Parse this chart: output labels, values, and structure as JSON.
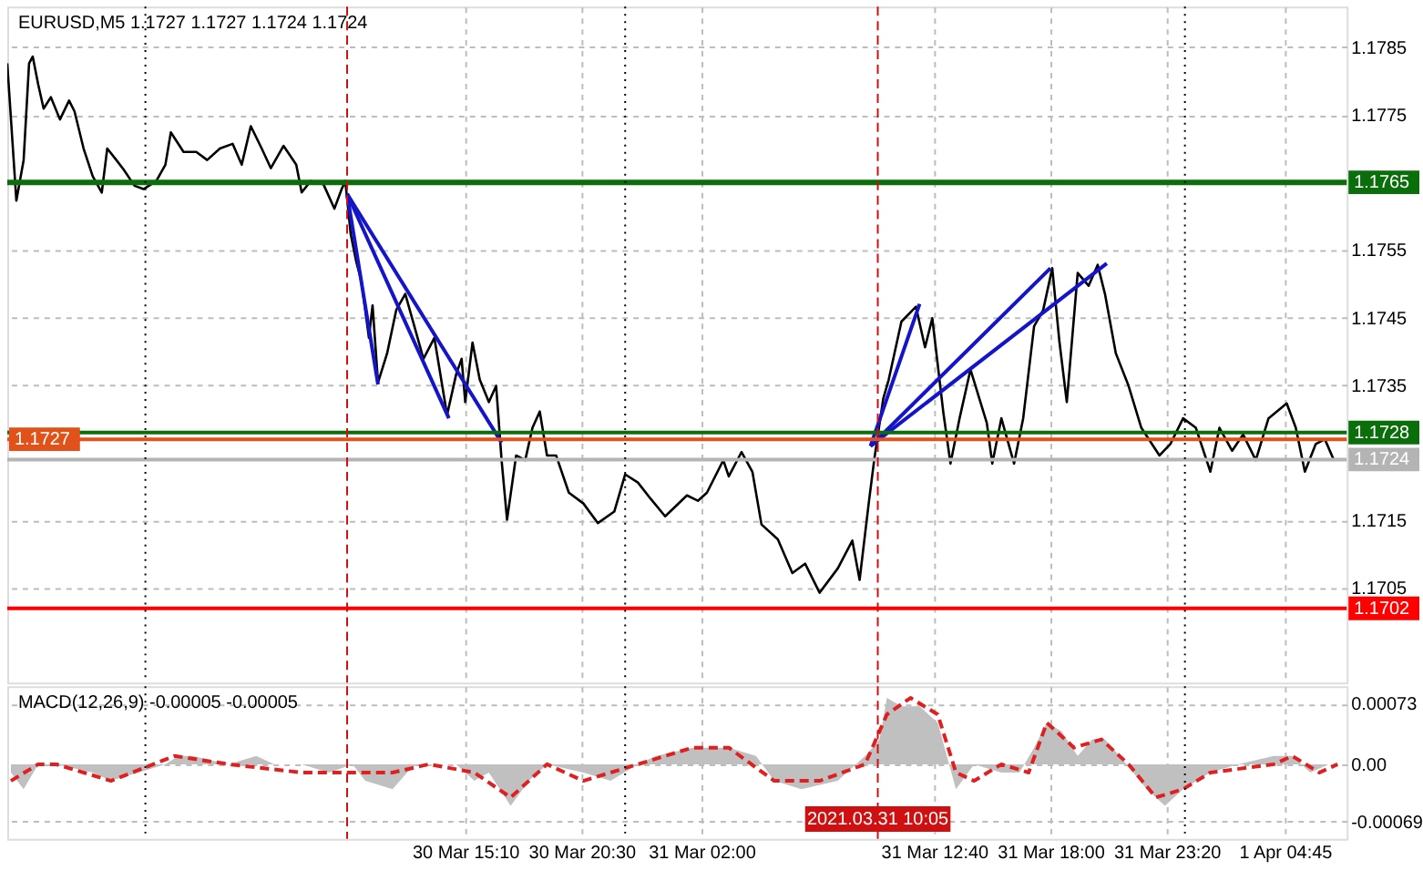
{
  "chart_data": [
    {
      "type": "line",
      "title": "EURUSD,M5 1.1727 1.1727 1.1724 1.1724",
      "xlim": [
        "2021-03-29T18:10",
        "2021-04-01T07:35"
      ],
      "ylim": [
        1.1691,
        1.1791
      ],
      "xticks": [
        {
          "value": "2021-03-30T15:10",
          "label": null
        },
        {
          "value": "2021-03-30T20:30",
          "label": null
        },
        {
          "value": "2021-03-31T02:00",
          "label": null
        },
        {
          "value": "2021-03-31T12:40",
          "label": null
        },
        {
          "value": "2021-03-31T18:00",
          "label": null
        },
        {
          "value": "2021-03-31T23:20",
          "label": null
        },
        {
          "value": "2021-04-01T04:45",
          "label": null
        }
      ],
      "yticks": [
        1.1705,
        1.1715,
        1.1735,
        1.1745,
        1.1755,
        1.1775,
        1.1785
      ],
      "grid": true,
      "tick_labels": "y",
      "line_style": "solid",
      "series": [
        {
          "color": "#000000",
          "x": [
            "2021-03-29T18:10",
            "2021-03-29T18:35",
            "2021-03-29T18:55",
            "2021-03-29T19:10",
            "2021-03-29T19:20",
            "2021-03-29T19:35",
            "2021-03-29T19:50",
            "2021-03-29T20:10",
            "2021-03-29T20:35",
            "2021-03-29T21:00",
            "2021-03-29T21:15",
            "2021-03-29T21:40",
            "2021-03-29T22:05",
            "2021-03-29T22:30",
            "2021-03-29T22:45",
            "2021-03-29T23:10",
            "2021-03-29T23:30",
            "2021-03-30T00:00",
            "2021-03-30T00:25",
            "2021-03-30T01:00",
            "2021-03-30T01:25",
            "2021-03-30T01:40",
            "2021-03-30T02:15",
            "2021-03-30T02:50",
            "2021-03-30T03:20",
            "2021-03-30T03:55",
            "2021-03-30T04:30",
            "2021-03-30T04:55",
            "2021-03-30T05:20",
            "2021-03-30T05:50",
            "2021-03-30T06:15",
            "2021-03-30T06:50",
            "2021-03-30T07:25",
            "2021-03-30T07:40",
            "2021-03-30T08:05",
            "2021-03-30T08:40",
            "2021-03-30T09:10",
            "2021-03-30T09:30",
            "2021-03-30T09:40",
            "2021-03-30T09:55",
            "2021-03-30T10:10",
            "2021-03-30T10:25",
            "2021-03-30T10:45",
            "2021-03-30T10:55",
            "2021-03-30T11:10",
            "2021-03-30T11:35",
            "2021-03-30T12:00",
            "2021-03-30T12:25",
            "2021-03-30T12:50",
            "2021-03-30T13:15",
            "2021-03-30T13:45",
            "2021-03-30T14:20",
            "2021-03-30T14:45",
            "2021-03-30T15:00",
            "2021-03-30T15:10",
            "2021-03-30T15:30",
            "2021-03-30T15:50",
            "2021-03-30T16:15",
            "2021-03-30T16:35",
            "2021-03-30T16:50",
            "2021-03-30T17:05",
            "2021-03-30T17:30",
            "2021-03-30T17:55",
            "2021-03-30T18:15",
            "2021-03-30T18:35",
            "2021-03-30T18:55",
            "2021-03-30T19:20",
            "2021-03-30T19:55",
            "2021-03-30T20:35",
            "2021-03-30T21:15",
            "2021-03-30T22:00",
            "2021-03-30T22:30",
            "2021-03-30T23:05",
            "2021-03-30T23:40",
            "2021-03-31T00:20",
            "2021-03-31T01:20",
            "2021-03-31T01:50",
            "2021-03-31T02:15",
            "2021-03-31T03:00",
            "2021-03-31T03:15",
            "2021-03-31T03:50",
            "2021-03-31T04:20",
            "2021-03-31T04:45",
            "2021-03-31T05:30",
            "2021-03-31T06:10",
            "2021-03-31T06:45",
            "2021-03-31T07:25",
            "2021-03-31T08:15",
            "2021-03-31T08:55",
            "2021-03-31T09:15",
            "2021-03-31T09:40",
            "2021-03-31T09:55",
            "2021-03-31T10:20",
            "2021-03-31T10:35",
            "2021-03-31T11:10",
            "2021-03-31T11:50",
            "2021-03-31T12:15",
            "2021-03-31T12:35",
            "2021-03-31T13:05",
            "2021-03-31T13:25",
            "2021-03-31T13:50",
            "2021-03-31T14:20",
            "2021-03-31T15:05",
            "2021-03-31T15:20",
            "2021-03-31T15:45",
            "2021-03-31T16:20",
            "2021-03-31T16:45",
            "2021-03-31T17:15",
            "2021-03-31T17:40",
            "2021-03-31T18:05",
            "2021-03-31T18:25",
            "2021-03-31T18:45",
            "2021-03-31T19:15",
            "2021-03-31T19:45",
            "2021-03-31T20:10",
            "2021-03-31T20:30",
            "2021-03-31T21:00",
            "2021-03-31T21:35",
            "2021-03-31T22:10",
            "2021-03-31T23:00",
            "2021-03-31T23:30",
            "2021-04-01T00:05",
            "2021-04-01T00:40",
            "2021-04-01T01:20",
            "2021-04-01T01:45",
            "2021-04-01T02:20",
            "2021-04-01T02:50",
            "2021-04-01T03:25",
            "2021-04-01T04:00",
            "2021-04-01T04:50",
            "2021-04-01T05:15",
            "2021-04-01T05:40",
            "2021-04-01T06:10",
            "2021-04-01T06:35",
            "2021-04-01T07:00"
          ],
          "values": [
            1.17826,
            1.17623,
            1.17683,
            1.17826,
            1.17836,
            1.17795,
            1.17759,
            1.17776,
            1.17743,
            1.17771,
            1.17755,
            1.177,
            1.17659,
            1.17635,
            1.177,
            1.17683,
            1.17669,
            1.17645,
            1.1764,
            1.17652,
            1.17676,
            1.17724,
            1.17695,
            1.17695,
            1.17683,
            1.177,
            1.17707,
            1.17676,
            1.17733,
            1.177,
            1.17671,
            1.17704,
            1.17676,
            1.17635,
            1.17652,
            1.17647,
            1.17611,
            1.1764,
            1.17652,
            1.17573,
            1.17533,
            1.17502,
            1.1742,
            1.17468,
            1.17354,
            1.17397,
            1.17461,
            1.17485,
            1.17437,
            1.17389,
            1.1742,
            1.17306,
            1.17366,
            1.17389,
            1.17325,
            1.17413,
            1.17358,
            1.17325,
            1.17349,
            1.17239,
            1.17151,
            1.17246,
            1.17239,
            1.17287,
            1.17311,
            1.17246,
            1.17246,
            1.17191,
            1.17175,
            1.17146,
            1.17163,
            1.17218,
            1.17206,
            1.17182,
            1.17156,
            1.17187,
            1.17179,
            1.17191,
            1.17239,
            1.17215,
            1.17251,
            1.17222,
            1.17144,
            1.17122,
            1.17072,
            1.17086,
            1.17043,
            1.17079,
            1.1712,
            1.17062,
            1.17175,
            1.17239,
            1.1733,
            1.17358,
            1.17444,
            1.17466,
            1.17406,
            1.17449,
            1.17311,
            1.17234,
            1.17301,
            1.17373,
            1.17294,
            1.17234,
            1.17301,
            1.17234,
            1.17301,
            1.17437,
            1.17461,
            1.17523,
            1.17413,
            1.17325,
            1.17516,
            1.17497,
            1.17528,
            1.17485,
            1.17397,
            1.17349,
            1.17287,
            1.17246,
            1.17263,
            1.17301,
            1.17287,
            1.17222,
            1.17287,
            1.17253,
            1.17277,
            1.17239,
            1.17301,
            1.17323,
            1.17287,
            1.17222,
            1.17263,
            1.1727,
            1.17239
          ]
        },
        {
          "color": "#1414c8",
          "x": [
            "2021-03-30T09:45",
            "2021-03-30T11:10"
          ],
          "values": [
            1.17633,
            1.17351
          ]
        },
        {
          "color": "#1414c8",
          "x": [
            "2021-03-30T09:45",
            "2021-03-30T14:25"
          ],
          "values": [
            1.17633,
            1.17301
          ]
        },
        {
          "color": "#1414c8",
          "x": [
            "2021-03-30T09:45",
            "2021-03-30T16:50"
          ],
          "values": [
            1.17633,
            1.17265
          ]
        },
        {
          "color": "#1414c8",
          "x": [
            "2021-03-31T09:45",
            "2021-03-31T12:00"
          ],
          "values": [
            1.1726,
            1.1747
          ]
        },
        {
          "color": "#1414c8",
          "x": [
            "2021-03-31T09:45",
            "2021-03-31T18:00"
          ],
          "values": [
            1.1726,
            1.17523
          ]
        },
        {
          "color": "#1414c8",
          "x": [
            "2021-03-31T09:45",
            "2021-03-31T20:35"
          ],
          "values": [
            1.1726,
            1.1753
          ]
        }
      ],
      "ref_lines": [
        {
          "axis": "y",
          "value": 1.1765,
          "label": "1.1765",
          "color": "#0a6e0a",
          "line_style": "solid"
        },
        {
          "axis": "y",
          "value": 1.1728,
          "label": "1.1728",
          "color": "#0a6e0a",
          "line_style": "solid"
        },
        {
          "axis": "y",
          "value": 1.1727,
          "label": "1.1727",
          "color": "#e0521a",
          "line_style": "solid"
        },
        {
          "axis": "y",
          "value": 1.1724,
          "label": "1.1724",
          "color": "#b4b4b4",
          "line_style": "solid"
        },
        {
          "axis": "y",
          "value": 1.1702,
          "label": "1.1702",
          "color": "#ff0000",
          "line_style": "solid"
        },
        {
          "axis": "x",
          "value": "2021-03-30T09:45",
          "color": "#d01010",
          "line_style": "dashed"
        },
        {
          "axis": "x",
          "value": "2021-03-31T10:05",
          "color": "#d01010",
          "line_style": "dashed"
        },
        {
          "axis": "x",
          "value": "2021-03-30T00:30",
          "color": "#000000",
          "line_style": "dotted"
        },
        {
          "axis": "x",
          "value": "2021-03-30T22:30",
          "color": "#000000",
          "line_style": "dotted"
        },
        {
          "axis": "x",
          "value": "2021-04-01T00:10",
          "color": "#000000",
          "line_style": "dotted"
        }
      ]
    },
    {
      "type": "area",
      "title": "MACD(12,26,9) -0.00005 -0.00005",
      "xlim": [
        "2021-03-29T18:10",
        "2021-04-01T07:35"
      ],
      "ylim": [
        -0.0009,
        0.00094
      ],
      "xticks": [
        {
          "value": "2021-03-30T15:10",
          "label": "30 Mar 15:10"
        },
        {
          "value": "2021-03-30T20:30",
          "label": "30 Mar 20:30"
        },
        {
          "value": "2021-03-31T02:00",
          "label": "31 Mar 02:00"
        },
        {
          "value": "2021-03-31T12:40",
          "label": "31 Mar 12:40"
        },
        {
          "value": "2021-03-31T18:00",
          "label": "31 Mar 18:00"
        },
        {
          "value": "2021-03-31T23:20",
          "label": "31 Mar 23:20"
        },
        {
          "value": "2021-04-01T04:45",
          "label": "1 Apr 04:45"
        }
      ],
      "yticks": [
        -0.00069,
        {
          "value": 0,
          "label": "0.00"
        },
        0.00073
      ],
      "grid": true,
      "series": [
        {
          "type": "area",
          "color": "#c0c0c0",
          "x": [
            "2021-03-29T18:20",
            "2021-03-29T18:55",
            "2021-03-29T19:35",
            "2021-03-29T20:25",
            "2021-03-29T22:05",
            "2021-03-29T22:55",
            "2021-03-30T00:10",
            "2021-03-30T01:25",
            "2021-03-30T02:00",
            "2021-03-30T02:40",
            "2021-03-30T04:20",
            "2021-03-30T05:35",
            "2021-03-30T06:25",
            "2021-03-30T07:40",
            "2021-03-30T08:55",
            "2021-03-30T10:00",
            "2021-03-30T10:35",
            "2021-03-30T11:50",
            "2021-03-30T12:30",
            "2021-03-30T12:55",
            "2021-03-30T13:55",
            "2021-03-30T14:45",
            "2021-03-30T15:35",
            "2021-03-30T16:15",
            "2021-03-30T17:15",
            "2021-03-30T18:05",
            "2021-03-30T18:55",
            "2021-03-30T20:35",
            "2021-03-30T21:50",
            "2021-03-30T23:05",
            "2021-03-30T23:55",
            "2021-03-31T01:35",
            "2021-03-31T03:15",
            "2021-03-31T04:30",
            "2021-03-31T05:20",
            "2021-03-31T06:35",
            "2021-03-31T08:15",
            "2021-03-31T09:30",
            "2021-03-31T10:10",
            "2021-03-31T10:30",
            "2021-03-31T11:10",
            "2021-03-31T12:00",
            "2021-03-31T12:50",
            "2021-03-31T13:15",
            "2021-03-31T13:40",
            "2021-03-31T14:30",
            "2021-03-31T15:45",
            "2021-03-31T16:35",
            "2021-03-31T17:15",
            "2021-03-31T17:50",
            "2021-03-31T18:30",
            "2021-03-31T19:15",
            "2021-03-31T19:55",
            "2021-03-31T20:30",
            "2021-03-31T21:10",
            "2021-03-31T22:25",
            "2021-03-31T23:15",
            "2021-04-01T00:05",
            "2021-04-01T01:20",
            "2021-04-01T02:35",
            "2021-04-01T04:15",
            "2021-04-01T05:05",
            "2021-04-01T05:55",
            "2021-04-01T06:45",
            "2021-04-01T07:10"
          ],
          "values": [
            -0.0001,
            -0.0003,
            0,
            0,
            -0.0001,
            -0.0002,
            -0.0001,
            0,
            0.0001,
            0.0001,
            0,
            0.0001,
            0,
            0,
            -0.0001,
            0,
            -0.0002,
            -0.0003,
            -0.0001,
            0,
            0,
            0,
            -0.0002,
            -0.0001,
            -0.0005,
            -0.0002,
            0,
            -0.0001,
            -0.0002,
            0,
            0.0001,
            0.0002,
            0.0002,
            0.0001,
            -0.0002,
            -0.0003,
            -0.0002,
            0.0001,
            0.0003,
            0.0008,
            0.0007,
            0.0007,
            0.0005,
            0.0001,
            -0.0003,
            0,
            -0.0001,
            -0.0001,
            0.0002,
            0.0005,
            0.0004,
            0.0001,
            0.0003,
            0.0003,
            0.0001,
            -0.0003,
            -0.0005,
            -0.0003,
            -0.0001,
            0,
            0.0001,
            0.0001,
            -0.0001,
            0,
            0
          ]
        },
        {
          "type": "line",
          "line_style": "dashed",
          "color": "#e02020",
          "x": [
            "2021-03-29T18:20",
            "2021-03-29T19:35",
            "2021-03-29T20:25",
            "2021-03-29T22:55",
            "2021-03-30T01:50",
            "2021-03-30T04:20",
            "2021-03-30T07:40",
            "2021-03-30T10:00",
            "2021-03-30T11:50",
            "2021-03-30T13:30",
            "2021-03-30T15:35",
            "2021-03-30T17:15",
            "2021-03-30T18:55",
            "2021-03-30T20:35",
            "2021-03-30T23:05",
            "2021-03-31T01:35",
            "2021-03-31T03:15",
            "2021-03-31T05:20",
            "2021-03-31T07:25",
            "2021-03-31T09:30",
            "2021-03-31T10:30",
            "2021-03-31T11:35",
            "2021-03-31T12:50",
            "2021-03-31T13:40",
            "2021-03-31T14:30",
            "2021-03-31T15:45",
            "2021-03-31T17:00",
            "2021-03-31T17:50",
            "2021-03-31T19:05",
            "2021-03-31T20:20",
            "2021-03-31T21:35",
            "2021-03-31T22:50",
            "2021-04-01T00:05",
            "2021-04-01T01:20",
            "2021-04-01T04:15",
            "2021-04-01T05:05",
            "2021-04-01T06:20",
            "2021-04-01T07:10"
          ],
          "values": [
            -0.0002,
            0,
            0,
            -0.0002,
            0.0001,
            0,
            -0.0001,
            -0.0001,
            -0.0001,
            0,
            -0.0001,
            -0.0004,
            0,
            -0.0002,
            0,
            0.0002,
            0.0002,
            -0.0002,
            -0.0002,
            0,
            0.0006,
            0.0008,
            0.0006,
            -0.0001,
            -0.0002,
            0,
            -0.0001,
            0.0005,
            0.0002,
            0.0003,
            0,
            -0.0004,
            -0.0003,
            -0.0001,
            0,
            0.0001,
            -0.0001,
            0
          ]
        }
      ],
      "ref_lines": [
        {
          "axis": "x",
          "value": "2021-03-30T09:45",
          "color": "#d01010",
          "line_style": "dashed"
        },
        {
          "axis": "x",
          "value": "2021-03-31T10:05",
          "label": "2021.03.31 10:05",
          "color": "#d01010",
          "line_style": "dashed"
        },
        {
          "axis": "x",
          "value": "2021-03-30T00:30",
          "color": "#000000",
          "line_style": "dotted"
        },
        {
          "axis": "x",
          "value": "2021-03-30T22:30",
          "color": "#000000",
          "line_style": "dotted"
        },
        {
          "axis": "x",
          "value": "2021-04-01T00:10",
          "color": "#000000",
          "line_style": "dotted"
        }
      ]
    }
  ]
}
